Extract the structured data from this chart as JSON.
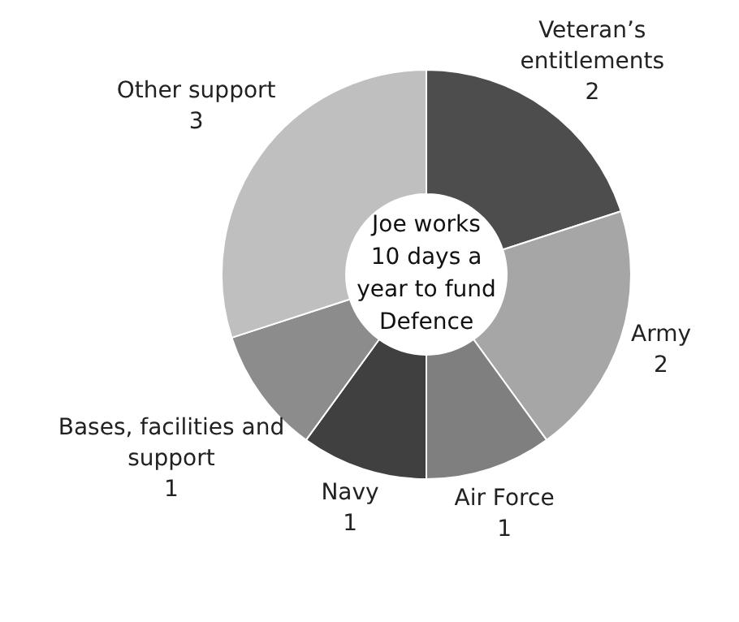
{
  "chart_data": {
    "type": "donut",
    "categories": [
      "Veteran’s entitlements",
      "Army",
      "Air Force",
      "Navy",
      "Bases, facilities and support",
      "Other support"
    ],
    "values": [
      2,
      2,
      1,
      1,
      1,
      3
    ],
    "colors": [
      "#4d4d4d",
      "#a6a6a6",
      "#7f7f7f",
      "#404040",
      "#8c8c8c",
      "#bfbfbf"
    ],
    "data_labels": true,
    "annotations": [
      "Joe works 10 days a year to fund Defence"
    ]
  }
}
